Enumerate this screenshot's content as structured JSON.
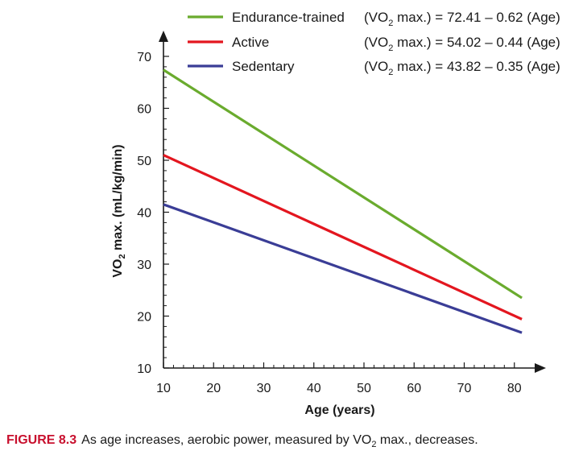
{
  "chart_data": {
    "type": "line",
    "xlabel": "Age (years)",
    "ylabel": {
      "prefix": "VO",
      "sub": "2",
      "suffix": " max. (mL/kg/min)"
    },
    "xlim": [
      10,
      82
    ],
    "ylim": [
      10,
      73
    ],
    "x_ticks": [
      10,
      20,
      30,
      40,
      50,
      60,
      70,
      80
    ],
    "y_ticks": [
      10,
      20,
      30,
      40,
      50,
      60,
      70
    ],
    "grid": false,
    "legend_position": "top",
    "series": [
      {
        "name": "Endurance-trained",
        "color": "#6aab2e",
        "equation": {
          "prefix": "(VO",
          "sub": "2",
          "suffix": " max.) = 72.41 – 0.62 (Age)"
        },
        "points": [
          [
            10,
            67.4
          ],
          [
            81.5,
            23.5
          ]
        ]
      },
      {
        "name": "Active",
        "color": "#e3161f",
        "equation": {
          "prefix": "(VO",
          "sub": "2",
          "suffix": " max.) = 54.02 – 0.44 (Age)"
        },
        "points": [
          [
            10,
            51.0
          ],
          [
            81.5,
            19.4
          ]
        ]
      },
      {
        "name": "Sedentary",
        "color": "#3a3d96",
        "equation": {
          "prefix": "(VO",
          "sub": "2",
          "suffix": " max.) = 43.82 – 0.35 (Age)"
        },
        "points": [
          [
            10,
            41.5
          ],
          [
            81.5,
            16.8
          ]
        ]
      }
    ]
  },
  "caption": {
    "label": "FIGURE 8.3",
    "text_before": "As age increases, aerobic power, measured by VO",
    "sub": "2",
    "text_after": " max., decreases."
  }
}
